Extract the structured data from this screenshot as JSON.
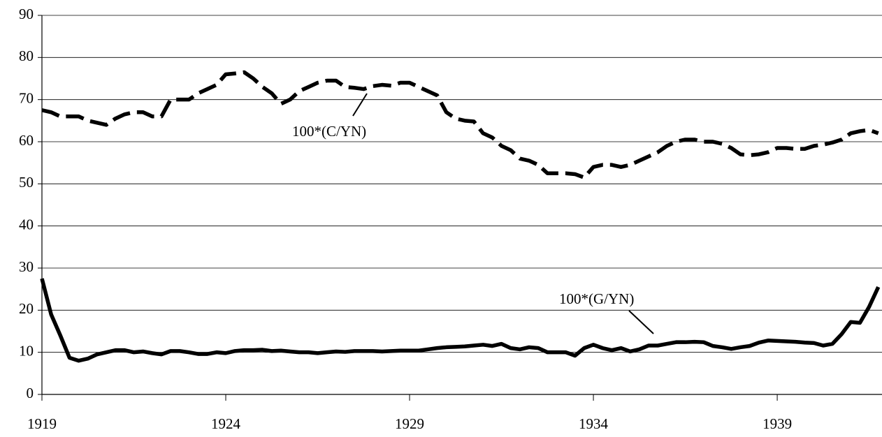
{
  "chart_data": {
    "type": "line",
    "x": [
      1919,
      1919.25,
      1919.5,
      1919.75,
      1920,
      1920.25,
      1920.5,
      1920.75,
      1921,
      1921.25,
      1921.5,
      1921.75,
      1922,
      1922.25,
      1922.5,
      1922.75,
      1923,
      1923.25,
      1923.5,
      1923.75,
      1924,
      1924.25,
      1924.5,
      1924.75,
      1925,
      1925.25,
      1925.5,
      1925.75,
      1926,
      1926.25,
      1926.5,
      1926.75,
      1927,
      1927.25,
      1927.5,
      1927.75,
      1928,
      1928.25,
      1928.5,
      1928.75,
      1929,
      1929.25,
      1929.5,
      1929.75,
      1930,
      1930.25,
      1930.5,
      1930.75,
      1931,
      1931.25,
      1931.5,
      1931.75,
      1932,
      1932.25,
      1932.5,
      1932.75,
      1933,
      1933.25,
      1933.5,
      1933.75,
      1934,
      1934.25,
      1934.5,
      1934.75,
      1935,
      1935.25,
      1935.5,
      1935.75,
      1936,
      1936.25,
      1936.5,
      1936.75,
      1937,
      1937.25,
      1937.5,
      1937.75,
      1938,
      1938.25,
      1938.5,
      1938.75,
      1939,
      1939.25,
      1939.5,
      1939.75,
      1940,
      1940.25,
      1940.5,
      1940.75,
      1941,
      1941.25,
      1941.5,
      1941.75
    ],
    "series": [
      {
        "name": "100*(C/YN)",
        "color": "#000000",
        "dashed": true,
        "values": [
          67.5,
          67,
          66,
          66,
          66,
          65,
          64.5,
          64,
          65.5,
          66.5,
          67,
          67,
          66,
          66,
          70,
          70,
          70,
          71.5,
          72.5,
          73.5,
          76,
          76.2,
          76.5,
          75,
          73,
          71.5,
          69,
          70,
          72,
          73,
          74,
          74.5,
          74.5,
          73,
          72.8,
          72.5,
          73.2,
          73.5,
          73.3,
          74,
          74,
          73,
          72,
          71,
          67,
          65.5,
          65,
          64.8,
          62,
          61,
          59,
          58,
          56,
          55.5,
          54.5,
          52.5,
          52.5,
          52.5,
          52.3,
          51.5,
          54,
          54.5,
          54.5,
          54,
          54.5,
          55.5,
          56.5,
          57.5,
          59,
          60,
          60.5,
          60.5,
          60,
          60,
          59.5,
          58.5,
          57,
          56.8,
          57,
          57.5,
          58.5,
          58.5,
          58.3,
          58.3,
          59,
          59.3,
          59.8,
          60.5,
          62,
          62.5,
          62.8,
          62
        ]
      },
      {
        "name": "100*(G/YN)",
        "color": "#000000",
        "dashed": false,
        "values": [
          27.5,
          19,
          14,
          8.7,
          8,
          8.5,
          9.5,
          10,
          10.5,
          10.5,
          10,
          10.2,
          9.8,
          9.5,
          10.3,
          10.3,
          10,
          9.6,
          9.6,
          10,
          9.8,
          10.3,
          10.5,
          10.5,
          10.6,
          10.3,
          10.4,
          10.2,
          10,
          10,
          9.8,
          10,
          10.2,
          10.1,
          10.3,
          10.3,
          10.3,
          10.2,
          10.3,
          10.4,
          10.4,
          10.4,
          10.7,
          11,
          11.2,
          11.3,
          11.4,
          11.6,
          11.8,
          11.5,
          12,
          11,
          10.7,
          11.2,
          11,
          10,
          10,
          10,
          9.2,
          11,
          11.8,
          11,
          10.5,
          11,
          10.2,
          10.7,
          11.6,
          11.6,
          12,
          12.4,
          12.4,
          12.5,
          12.4,
          11.5,
          11.2,
          10.8,
          11.2,
          11.5,
          12.3,
          12.8,
          12.7,
          12.6,
          12.5,
          12.3,
          12.2,
          11.6,
          12,
          14.3,
          17.2,
          17,
          20.8,
          25.5
        ]
      }
    ],
    "xlim": [
      1919,
      1941.85
    ],
    "xticks": [
      1919,
      1924,
      1929,
      1934,
      1939
    ],
    "ylim": [
      0,
      90
    ],
    "yticks": [
      0,
      10,
      20,
      30,
      40,
      50,
      60,
      70,
      80,
      90
    ],
    "grid": true
  }
}
